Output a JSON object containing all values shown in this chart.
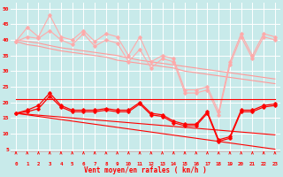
{
  "x": [
    0,
    1,
    2,
    3,
    4,
    5,
    6,
    7,
    8,
    9,
    10,
    11,
    12,
    13,
    14,
    15,
    16,
    17,
    18,
    19,
    20,
    21,
    22,
    23
  ],
  "line_gust_upper": [
    39.5,
    44,
    41,
    48,
    41,
    40,
    43,
    39.5,
    42,
    41,
    35,
    41,
    33,
    35,
    34,
    24,
    24,
    25,
    17,
    33,
    42,
    35,
    42,
    41
  ],
  "line_gust_mid": [
    39.5,
    41,
    40.5,
    43,
    40,
    38.5,
    42,
    38,
    40,
    39,
    33,
    37,
    31,
    34,
    33,
    23,
    23,
    24,
    16,
    32,
    41,
    34,
    41,
    40
  ],
  "line_trend_up": [
    40,
    39.5,
    39,
    38.2,
    37.5,
    37,
    36.5,
    36,
    35.5,
    35,
    34.2,
    33.5,
    33,
    32.5,
    32,
    31.5,
    31,
    30.5,
    30,
    29.5,
    29,
    28.5,
    28,
    27.5
  ],
  "line_trend_low": [
    39.5,
    38.5,
    38,
    37.2,
    36.5,
    36,
    35.5,
    35,
    34.5,
    33.5,
    33,
    32.5,
    32,
    31.5,
    31,
    30,
    29.5,
    29,
    28.5,
    28,
    27.5,
    27,
    26.5,
    26
  ],
  "line_mean_upper": [
    16.5,
    17.5,
    19,
    23,
    19,
    17.5,
    17.5,
    17.5,
    18,
    17.5,
    17.5,
    20,
    16.5,
    16,
    14,
    13,
    13,
    17,
    8,
    9,
    17.5,
    17.5,
    19,
    19.5
  ],
  "line_mean_mid": [
    16.5,
    17,
    18,
    22,
    18.5,
    17,
    17,
    17,
    17.5,
    17,
    17,
    19.5,
    16,
    15.5,
    13.5,
    12.5,
    12.5,
    16.5,
    7.5,
    8.5,
    17,
    17,
    18.5,
    19
  ],
  "line_mean_flat": [
    21,
    21,
    21,
    21,
    21,
    21,
    21,
    21,
    21,
    21,
    21,
    21,
    21,
    21,
    21,
    21,
    21,
    21,
    21,
    21,
    21,
    21,
    21,
    21
  ],
  "line_trend2_up": [
    16.5,
    16.2,
    15.9,
    15.6,
    15.3,
    15.0,
    14.7,
    14.4,
    14.1,
    13.8,
    13.5,
    13.2,
    12.9,
    12.6,
    12.3,
    12.0,
    11.7,
    11.4,
    11.1,
    10.8,
    10.5,
    10.2,
    9.9,
    9.6
  ],
  "line_trend2_low": [
    16.5,
    16.0,
    15.5,
    15.0,
    14.5,
    14.0,
    13.5,
    13.0,
    12.5,
    12.0,
    11.5,
    11.0,
    10.5,
    10.0,
    9.5,
    9.0,
    8.5,
    8.0,
    7.5,
    7.0,
    6.5,
    6.0,
    5.5,
    5.0
  ],
  "color_gust": "#ffaaaa",
  "color_mean": "#ff0000",
  "color_trend": "#ff9999",
  "bg_color": "#c8eaea",
  "xlabel": "Vent moyen/en rafales ( km/h )",
  "yticks": [
    5,
    10,
    15,
    20,
    25,
    30,
    35,
    40,
    45,
    50
  ],
  "ylim": [
    4,
    52
  ],
  "xlim": [
    -0.5,
    23.5
  ]
}
